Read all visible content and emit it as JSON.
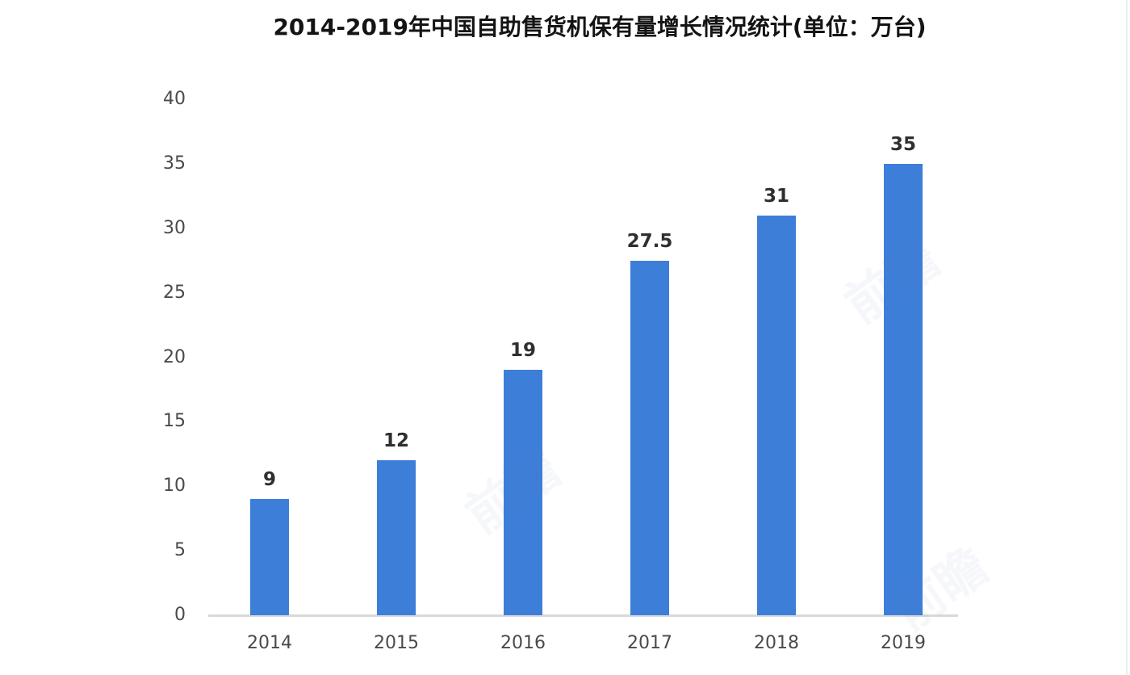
{
  "chart_data": {
    "type": "bar",
    "title": "2014-2019年中国自助售货机保有量增长情况统计(单位：万台)",
    "categories": [
      "2014",
      "2015",
      "2016",
      "2017",
      "2018",
      "2019"
    ],
    "values": [
      9,
      12,
      19,
      27.5,
      31,
      35
    ],
    "value_labels": [
      "9",
      "12",
      "19",
      "27.5",
      "31",
      "35"
    ],
    "xlabel": "",
    "ylabel": "",
    "ylim": [
      0,
      40
    ],
    "yticks": [
      0,
      5,
      10,
      15,
      20,
      25,
      30,
      35,
      40
    ],
    "grid": false,
    "legend": false,
    "bar_color": "#3d7ed9",
    "axis_line_color": "#d9d9d9",
    "tick_label_color": "#4a4a4a",
    "value_label_color": "#2f2f2f",
    "title_color": "#141414",
    "background_color": "#ffffff"
  },
  "watermark": {
    "text": "前瞻",
    "color": "#6c84b8"
  }
}
